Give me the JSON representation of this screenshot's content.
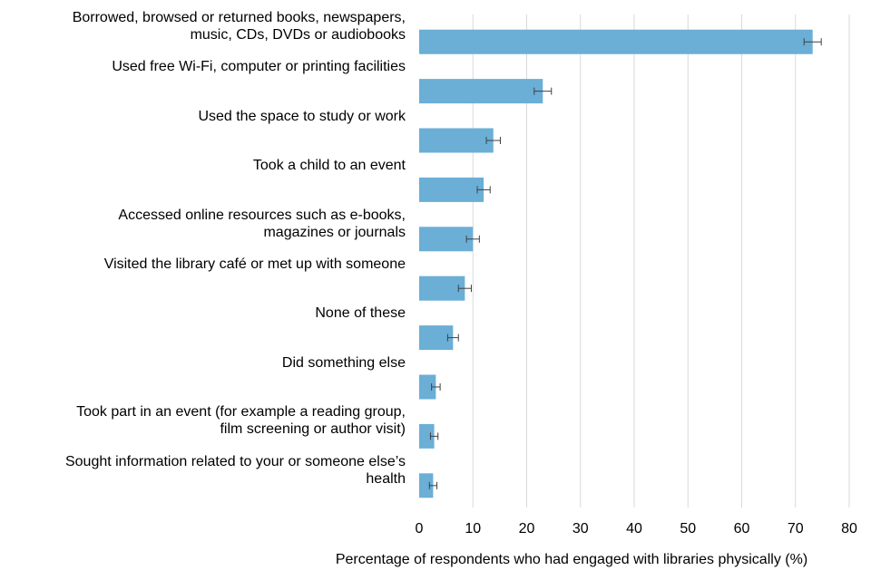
{
  "chart_data": {
    "type": "bar",
    "orientation": "horizontal",
    "categories": [
      [
        "Borrowed, browsed or returned books, newspapers,",
        "music, CDs, DVDs or audiobooks"
      ],
      [
        "Used free Wi-Fi, computer or printing facilities"
      ],
      [
        "Used the space to study or work"
      ],
      [
        "Took a child to an event"
      ],
      [
        "Accessed online resources such as e-books,",
        "magazines or journals"
      ],
      [
        "Visited the library café or met up with someone"
      ],
      [
        "None of these"
      ],
      [
        "Did something else"
      ],
      [
        "Took part in an event (for example a reading group,",
        "film screening or author visit)"
      ],
      [
        "Sought information related to your or someone else’s",
        "health"
      ]
    ],
    "values": [
      73.2,
      23.0,
      13.8,
      12.0,
      10.0,
      8.5,
      6.3,
      3.1,
      2.8,
      2.6
    ],
    "error_low": [
      71.6,
      21.4,
      12.5,
      10.8,
      8.8,
      7.3,
      5.3,
      2.3,
      2.1,
      1.9
    ],
    "error_high": [
      74.8,
      24.6,
      15.1,
      13.2,
      11.2,
      9.7,
      7.3,
      3.9,
      3.5,
      3.3
    ],
    "xlabel": "Percentage of respondents who had engaged with libraries physically (%)",
    "ylabel": "",
    "xlim": [
      0,
      80
    ],
    "xticks": [
      "0",
      "10",
      "20",
      "30",
      "40",
      "50",
      "60",
      "70",
      "80"
    ],
    "grid": "vertical",
    "legend": "none",
    "colors": {
      "bar": "#6baed6",
      "grid": "#d9d9d9",
      "error": "#404040"
    }
  }
}
